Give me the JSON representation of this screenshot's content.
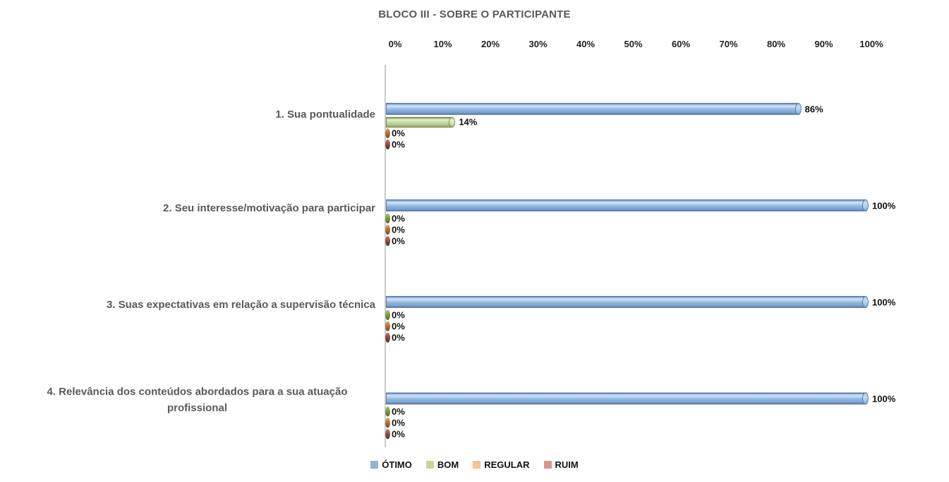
{
  "chart_data": {
    "type": "bar",
    "orientation": "horizontal",
    "title": "BLOCO III - SOBRE O PARTICIPANTE",
    "categories": [
      "1. Sua pontualidade",
      "2. Seu interesse/motivação para participar",
      "3. Suas expectativas em relação a supervisão técnica",
      "4. Relevância dos conteúdos abordados para a sua atuação profissional"
    ],
    "series": [
      {
        "name": "ÓTIMO",
        "legend_color": "#95B3D7",
        "values": [
          86,
          100,
          100,
          100
        ],
        "labels": [
          "86%",
          "100%",
          "100%",
          "100%"
        ]
      },
      {
        "name": "BOM",
        "legend_color": "#C3D69B",
        "values": [
          14,
          0,
          0,
          0
        ],
        "labels": [
          "14%",
          "0%",
          "0%",
          "0%"
        ]
      },
      {
        "name": "REGULAR",
        "legend_color": "#FAC090",
        "values": [
          0,
          0,
          0,
          0
        ],
        "labels": [
          "0%",
          "0%",
          "0%",
          "0%"
        ]
      },
      {
        "name": "RUIM",
        "legend_color": "#D99694",
        "values": [
          0,
          0,
          0,
          0
        ],
        "labels": [
          "0%",
          "0%",
          "0%",
          "0%"
        ]
      }
    ],
    "axis": {
      "ticks": [
        "0%",
        "10%",
        "20%",
        "30%",
        "40%",
        "50%",
        "60%",
        "70%",
        "80%",
        "90%",
        "100%"
      ],
      "min": 0,
      "max": 100
    },
    "legend": [
      "ÓTIMO",
      "BOM",
      "REGULAR",
      "RUIM"
    ],
    "legend_position": "bottom",
    "grid": false,
    "value_labels_shown": true
  }
}
